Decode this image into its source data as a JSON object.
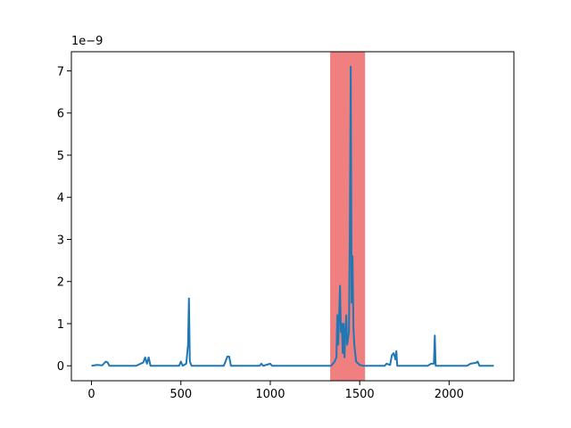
{
  "chart_data": {
    "type": "line",
    "offset_text": "1e−9",
    "x": [
      0,
      30,
      60,
      80,
      90,
      100,
      250,
      290,
      300,
      310,
      320,
      330,
      490,
      500,
      510,
      530,
      540,
      545,
      550,
      560,
      740,
      760,
      770,
      780,
      940,
      950,
      960,
      1000,
      1010,
      1340,
      1360,
      1370,
      1375,
      1380,
      1385,
      1390,
      1395,
      1400,
      1405,
      1410,
      1415,
      1420,
      1425,
      1430,
      1440,
      1445,
      1450,
      1455,
      1460,
      1465,
      1470,
      1480,
      1500,
      1520,
      1640,
      1650,
      1670,
      1680,
      1690,
      1700,
      1705,
      1710,
      1880,
      1900,
      1915,
      1920,
      1925,
      2100,
      2120,
      2150,
      2160,
      2170,
      2250
    ],
    "series": [
      {
        "color": "#1f77b4",
        "values": [
          0,
          0.02,
          0.01,
          0.1,
          0.08,
          0,
          0,
          0.08,
          0.2,
          0.05,
          0.2,
          0,
          0,
          0.1,
          0,
          0.05,
          0.5,
          1.6,
          0.1,
          0,
          0,
          0.22,
          0.22,
          0,
          0,
          0.05,
          0,
          0.05,
          0,
          0,
          0.1,
          0.2,
          1.2,
          0.5,
          1.2,
          1.9,
          0.8,
          1.0,
          0.3,
          1.0,
          0.2,
          0.8,
          1.2,
          0.5,
          0.8,
          3.3,
          7.1,
          1.5,
          2.6,
          0.9,
          0.5,
          0.1,
          0.02,
          0,
          0,
          0.05,
          0.02,
          0.25,
          0.3,
          0.15,
          0.35,
          0,
          0,
          0.05,
          0.05,
          0.72,
          0,
          0,
          0.05,
          0.07,
          0.1,
          0,
          0
        ]
      }
    ],
    "span": {
      "xmin": 1335,
      "xmax": 1530,
      "color": "#f08080"
    },
    "xlim": [
      -112.5,
      2362.5
    ],
    "ylim": [
      -0.355,
      7.455
    ],
    "xticks": [
      0,
      500,
      1000,
      1500,
      2000
    ],
    "yticks": [
      0,
      1,
      2,
      3,
      4,
      5,
      6,
      7
    ]
  }
}
